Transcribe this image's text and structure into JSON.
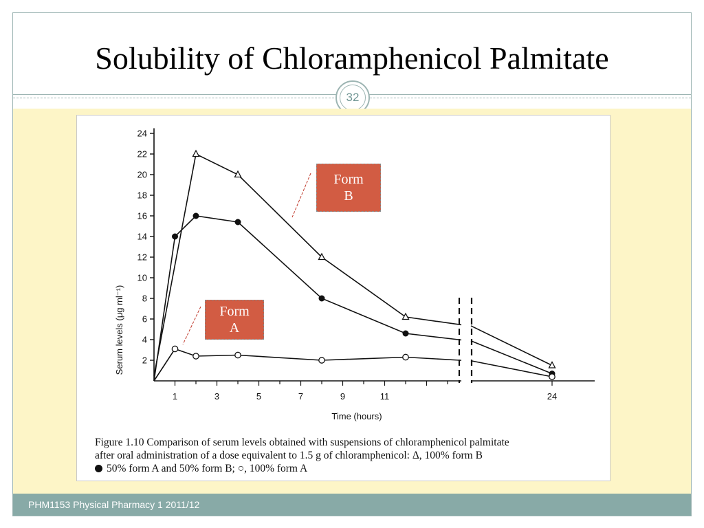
{
  "slide": {
    "title": "Solubility of Chloramphenicol Palmitate",
    "slide_number": "32",
    "footer": "PHM1153 Physical Pharmacy 1 2011/12"
  },
  "annotations": [
    {
      "line1": "Form",
      "line2": "B"
    },
    {
      "line1": "Form",
      "line2": "A"
    }
  ],
  "caption": {
    "line1": "Figure 1.10    Comparison of serum levels obtained with suspensions of chloramphenicol palmitate",
    "line2": "after oral administration of a dose equivalent to 1.5 g of chloramphenicol: Δ, 100% form B",
    "line3": "50% form A and 50% form B; ○, 100% form A"
  },
  "colors": {
    "accent": "#88aaa7",
    "content_background": "#fdf5c7",
    "label_fill": "#d25c43"
  },
  "chart_data": {
    "type": "line",
    "xlabel": "Time (hours)",
    "ylabel": "Serum levels (μg ml⁻¹)",
    "x_ticks": [
      "1",
      "3",
      "5",
      "7",
      "9",
      "11",
      "24"
    ],
    "y_ticks": [
      "2",
      "4",
      "6",
      "8",
      "10",
      "12",
      "14",
      "16",
      "18",
      "20",
      "22",
      "24"
    ],
    "ylim": [
      0,
      25
    ],
    "axis_break": "between 14 and 22 hours",
    "series": [
      {
        "marker": "triangle",
        "x": [
          0,
          2,
          4,
          8,
          12,
          24
        ],
        "y": [
          0.5,
          22,
          20,
          12,
          6.2,
          1.5
        ]
      },
      {
        "marker": "filled-circle",
        "x": [
          0,
          1,
          2,
          4,
          8,
          12,
          24
        ],
        "y": [
          0,
          14,
          16,
          15.4,
          8,
          4.6,
          0.7
        ]
      },
      {
        "marker": "open-circle",
        "x": [
          0,
          1,
          2,
          4,
          8,
          12,
          24
        ],
        "y": [
          0,
          3.1,
          2.4,
          2.5,
          2,
          2.3,
          0.4
        ]
      }
    ]
  }
}
